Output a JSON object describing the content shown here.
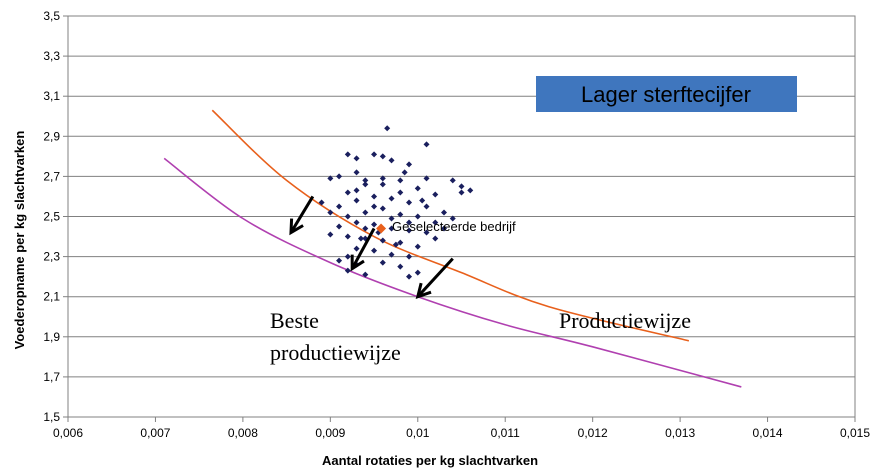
{
  "chart_data": {
    "type": "scatter",
    "xlabel": "Aantal rotaties per kg slachtvarken",
    "ylabel": "Voederopname per kg slachtvarken",
    "xlim": [
      0.006,
      0.015
    ],
    "ylim": [
      1.5,
      3.5
    ],
    "x_ticks": [
      "0,006",
      "0,007",
      "0,008",
      "0,009",
      "0,01",
      "0,011",
      "0,012",
      "0,013",
      "0,014",
      "0,015"
    ],
    "y_ticks": [
      "1,5",
      "1,7",
      "1,9",
      "2,1",
      "2,3",
      "2,5",
      "2,7",
      "2,9",
      "3,1",
      "3,3",
      "3,5"
    ],
    "grid": "horizontal",
    "scatter_color": "#1a1f5e",
    "points": [
      [
        0.0092,
        2.81
      ],
      [
        0.0093,
        2.79
      ],
      [
        0.0094,
        2.68
      ],
      [
        0.0095,
        2.81
      ],
      [
        0.0096,
        2.8
      ],
      [
        0.0097,
        2.78
      ],
      [
        0.00965,
        2.94
      ],
      [
        0.0101,
        2.86
      ],
      [
        0.009,
        2.69
      ],
      [
        0.0091,
        2.7
      ],
      [
        0.0093,
        2.72
      ],
      [
        0.0099,
        2.76
      ],
      [
        0.0098,
        2.68
      ],
      [
        0.0104,
        2.68
      ],
      [
        0.0105,
        2.65
      ],
      [
        0.0106,
        2.63
      ],
      [
        0.0105,
        2.62
      ],
      [
        0.0102,
        2.61
      ],
      [
        0.01,
        2.64
      ],
      [
        0.0096,
        2.66
      ],
      [
        0.0094,
        2.66
      ],
      [
        0.0092,
        2.62
      ],
      [
        0.0089,
        2.57
      ],
      [
        0.0091,
        2.55
      ],
      [
        0.0093,
        2.58
      ],
      [
        0.0095,
        2.6
      ],
      [
        0.0097,
        2.59
      ],
      [
        0.0099,
        2.57
      ],
      [
        0.0101,
        2.55
      ],
      [
        0.0103,
        2.52
      ],
      [
        0.0092,
        2.5
      ],
      [
        0.0094,
        2.52
      ],
      [
        0.0096,
        2.54
      ],
      [
        0.0098,
        2.51
      ],
      [
        0.01,
        2.5
      ],
      [
        0.0102,
        2.47
      ],
      [
        0.0091,
        2.45
      ],
      [
        0.0093,
        2.47
      ],
      [
        0.0095,
        2.46
      ],
      [
        0.0097,
        2.44
      ],
      [
        0.0099,
        2.43
      ],
      [
        0.0101,
        2.42
      ],
      [
        0.009,
        2.41
      ],
      [
        0.0092,
        2.4
      ],
      [
        0.0094,
        2.39
      ],
      [
        0.0096,
        2.38
      ],
      [
        0.0098,
        2.37
      ],
      [
        0.01,
        2.35
      ],
      [
        0.0093,
        2.34
      ],
      [
        0.0095,
        2.33
      ],
      [
        0.0097,
        2.31
      ],
      [
        0.0099,
        2.3
      ],
      [
        0.0096,
        2.27
      ],
      [
        0.0098,
        2.25
      ],
      [
        0.0092,
        2.3
      ],
      [
        0.0091,
        2.28
      ],
      [
        0.0093,
        2.26
      ],
      [
        0.0092,
        2.23
      ],
      [
        0.0094,
        2.21
      ],
      [
        0.01,
        2.22
      ],
      [
        0.0099,
        2.2
      ],
      [
        0.0102,
        2.39
      ],
      [
        0.0103,
        2.44
      ],
      [
        0.0104,
        2.49
      ],
      [
        0.0097,
        2.49
      ],
      [
        0.0095,
        2.55
      ],
      [
        0.0098,
        2.62
      ],
      [
        0.0096,
        2.69
      ],
      [
        0.0101,
        2.69
      ],
      [
        0.0093,
        2.63
      ],
      [
        0.009,
        2.52
      ],
      [
        0.0094,
        2.44
      ],
      [
        0.0099,
        2.47
      ],
      [
        0.00935,
        2.39
      ],
      [
        0.00955,
        2.42
      ],
      [
        0.00975,
        2.36
      ],
      [
        0.01005,
        2.58
      ],
      [
        0.00985,
        2.72
      ]
    ],
    "selected_point": {
      "x": 0.00958,
      "y": 2.44,
      "label": "Geselecteerde bedrijf",
      "color": "#e8601c"
    },
    "series": [
      {
        "name": "Productiewijze",
        "color": "#e8601c",
        "x": [
          0.00765,
          0.0085,
          0.0095,
          0.0105,
          0.0115,
          0.0131
        ],
        "y": [
          3.03,
          2.68,
          2.4,
          2.22,
          2.05,
          1.88
        ]
      },
      {
        "name": "Beste productiewijze",
        "color": "#b040b0",
        "x": [
          0.0071,
          0.008,
          0.009,
          0.01,
          0.011,
          0.012,
          0.0137
        ],
        "y": [
          2.79,
          2.49,
          2.27,
          2.1,
          1.96,
          1.85,
          1.65
        ]
      }
    ],
    "arrows": [
      {
        "from": [
          0.0088,
          2.6
        ],
        "to": [
          0.00855,
          2.42
        ]
      },
      {
        "from": [
          0.0095,
          2.44
        ],
        "to": [
          0.00925,
          2.24
        ]
      },
      {
        "from": [
          0.0104,
          2.29
        ],
        "to": [
          0.01,
          2.1
        ]
      }
    ],
    "annotation_box": {
      "text": "Lager sterftecijfer",
      "color": "#3f76be"
    },
    "labels": {
      "productiewijze": "Productiewijze",
      "beste_line1": "Beste",
      "beste_line2": "productiewijze"
    }
  }
}
